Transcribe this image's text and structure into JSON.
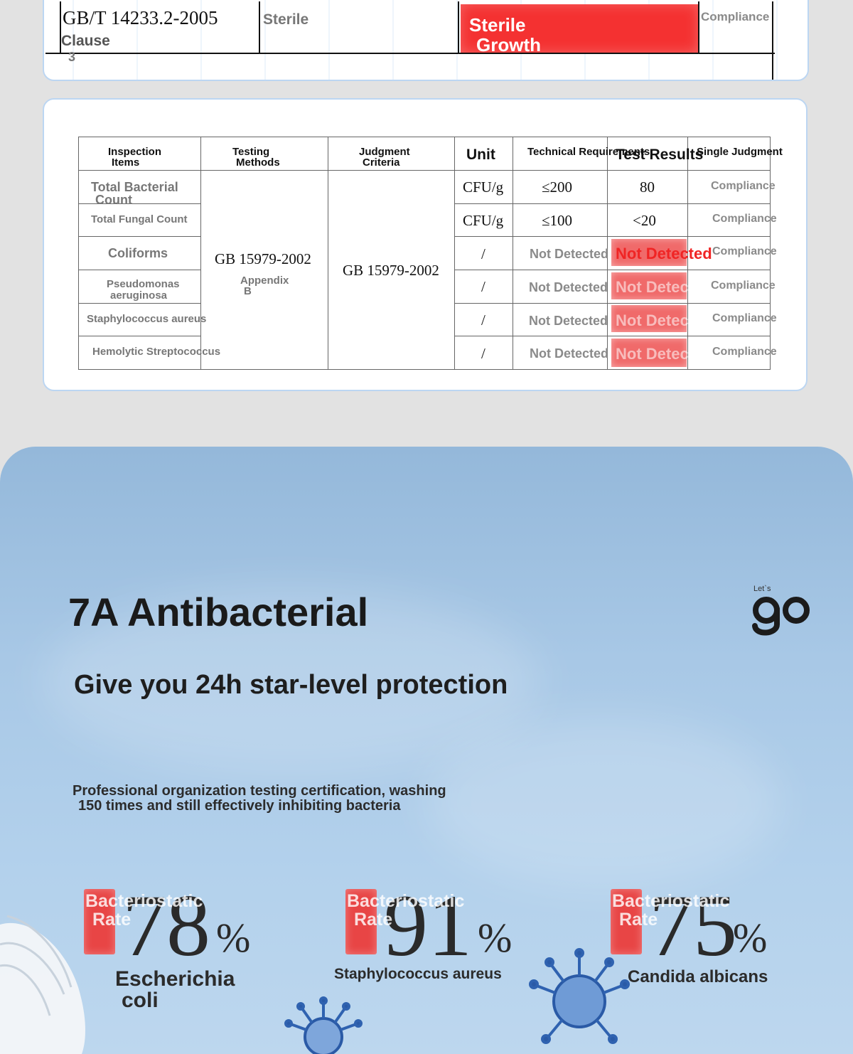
{
  "top_table": {
    "standard": "GB/T 14233.2-2005",
    "clause": "Clause",
    "clause_num": "3",
    "item": "Sterile",
    "result_line1": "Sterile",
    "result_line2": "Growth",
    "judgment": "Compliance"
  },
  "table": {
    "headers": {
      "items_l1": "Inspection",
      "items_l2": "Items",
      "methods_l1": "Testing",
      "methods_l2": "Methods",
      "criteria_l1": "Judgment",
      "criteria_l2": "Criteria",
      "unit": "Unit",
      "tech": "Technical Requirements",
      "results": "Test Results",
      "single": "Single Judgment"
    },
    "method": "GB 15979-2002",
    "method_appendix_l1": "Appendix",
    "method_appendix_l2": "B",
    "criteria": "GB 15979-2002",
    "rows": [
      {
        "item_l1": "Total Bacterial",
        "item_l2": "Count",
        "unit": "CFU/g",
        "tech": "≤200",
        "result": "80",
        "judgment": "Compliance"
      },
      {
        "item_l1": "Total Fungal Count",
        "item_l2": "",
        "unit": "CFU/g",
        "tech": "≤100",
        "result": "<20",
        "judgment": "Compliance"
      },
      {
        "item_l1": "Coliforms",
        "item_l2": "",
        "unit": "/",
        "tech": "Not Detected",
        "result": "Not Detected",
        "judgment": "Compliance"
      },
      {
        "item_l1": "Pseudomonas",
        "item_l2": "aeruginosa",
        "unit": "/",
        "tech": "Not Detected",
        "result": "Not Detected",
        "judgment": "Compliance"
      },
      {
        "item_l1": "Staphylococcus aureus",
        "item_l2": "",
        "unit": "/",
        "tech": "Not Detected",
        "result": "Not Detected",
        "judgment": "Compliance"
      },
      {
        "item_l1": "Hemolytic Streptococcus",
        "item_l2": "",
        "unit": "/",
        "tech": "Not Detected",
        "result": "Not Detected",
        "judgment": "Compliance"
      }
    ]
  },
  "hero": {
    "title": "7A Antibacterial",
    "subtitle": "Give you 24h star-level protection",
    "desc_l1": "Professional organization testing certification, washing",
    "desc_l2": "150 times and still effectively inhibiting bacteria",
    "logo_small": "Let`s",
    "logo_big": "go"
  },
  "stats": [
    {
      "label_l1": "Bacteriostatic",
      "label_l2": "Rate",
      "value": "78",
      "unit": "%",
      "name_l1": "Escherichia",
      "name_l2": "coli"
    },
    {
      "label_l1": "Bacteriostatic",
      "label_l2": "Rate",
      "value": "91",
      "unit": "%",
      "name_l1": "Staphylococcus aureus",
      "name_l2": ""
    },
    {
      "label_l1": "Bacteriostatic",
      "label_l2": "Rate",
      "value": "75",
      "unit": "%",
      "name_l1": "Candida albicans",
      "name_l2": ""
    }
  ],
  "colors": {
    "red": "#f43131",
    "blue_bg": "#a8c8e6",
    "card_border": "#bcd6f2"
  }
}
